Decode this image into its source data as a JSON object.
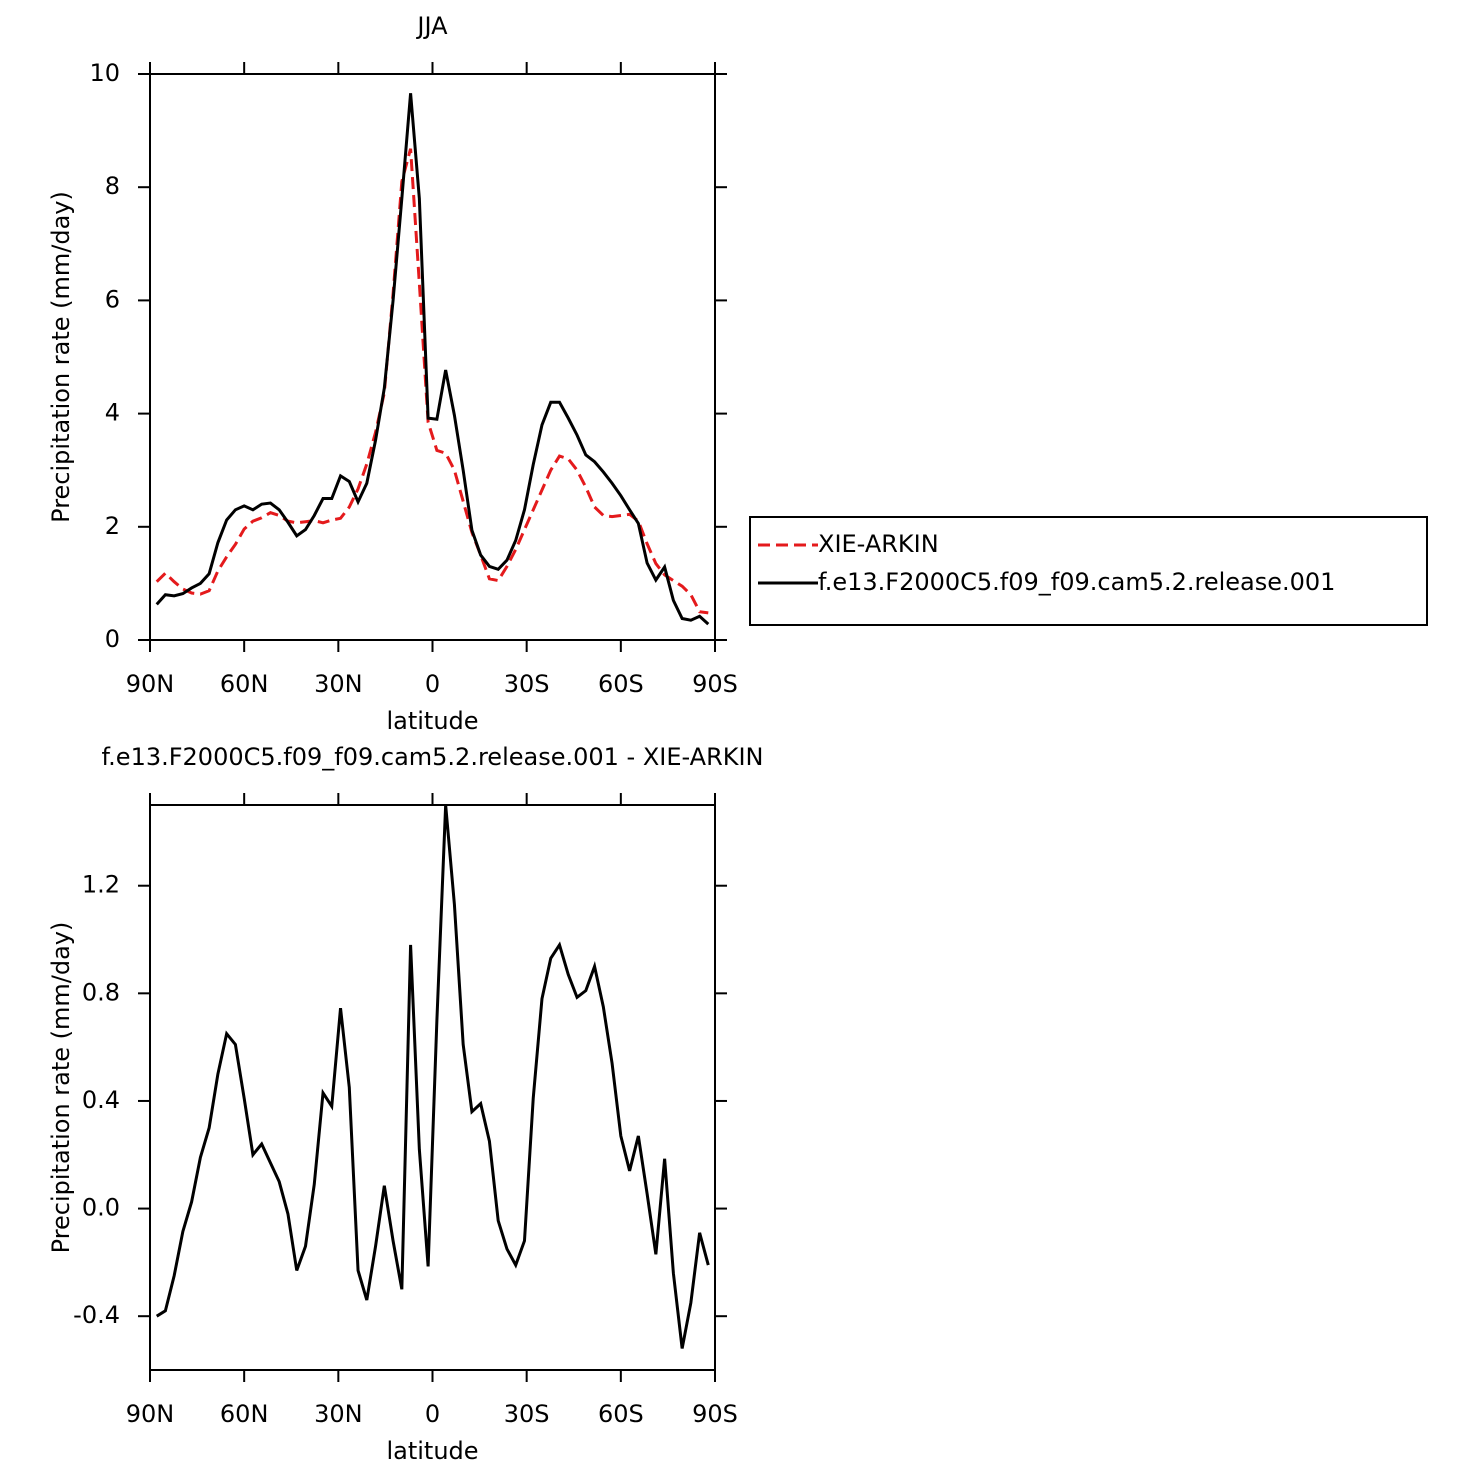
{
  "chart_data": [
    {
      "type": "line",
      "title": "JJA",
      "xlabel": "latitude",
      "ylabel": "Precipitation rate (mm/day)",
      "x": [
        87.86,
        85.1,
        82.31,
        79.53,
        76.74,
        73.95,
        71.16,
        68.37,
        65.58,
        62.79,
        60,
        57.21,
        54.42,
        51.63,
        48.84,
        46.05,
        43.25,
        40.46,
        37.67,
        34.88,
        32.09,
        29.3,
        26.51,
        23.72,
        20.93,
        18.14,
        15.35,
        12.56,
        9.77,
        6.98,
        4.19,
        1.4,
        -1.4,
        -4.19,
        -6.98,
        -9.77,
        -12.56,
        -15.35,
        -18.14,
        -20.93,
        -23.72,
        -26.51,
        -29.3,
        -32.09,
        -34.88,
        -37.67,
        -40.46,
        -43.25,
        -46.05,
        -48.84,
        -51.63,
        -54.42,
        -57.21,
        -60,
        -62.79,
        -65.58,
        -68.37,
        -71.16,
        -73.95,
        -76.74,
        -79.53,
        -82.31,
        -85.1,
        -87.86
      ],
      "series": [
        {
          "name": "XIE-ARKIN",
          "color": "#e41a1c",
          "style": "dashed",
          "values": [
            1.03,
            1.18,
            1.03,
            0.9,
            0.83,
            0.81,
            0.87,
            1.22,
            1.47,
            1.69,
            1.96,
            2.1,
            2.16,
            2.25,
            2.2,
            2.1,
            2.07,
            2.09,
            2.11,
            2.07,
            2.12,
            2.15,
            2.35,
            2.67,
            3.11,
            3.67,
            4.37,
            6.12,
            8.1,
            8.68,
            6.3,
            3.85,
            3.35,
            3.3,
            3.0,
            2.45,
            1.9,
            1.5,
            1.08,
            1.05,
            1.3,
            1.6,
            1.95,
            2.3,
            2.65,
            3.0,
            3.25,
            3.2,
            3.0,
            2.7,
            2.35,
            2.2,
            2.18,
            2.2,
            2.22,
            2.1,
            1.7,
            1.35,
            1.15,
            1.05,
            0.95,
            0.8,
            0.5,
            0.48
          ]
        },
        {
          "name": "f.e13.F2000C5.f09_f09.cam5.2.release.001",
          "color": "#000000",
          "style": "solid",
          "values": [
            0.63,
            0.8,
            0.78,
            0.82,
            0.92,
            1.0,
            1.17,
            1.72,
            2.12,
            2.3,
            2.37,
            2.3,
            2.4,
            2.42,
            2.3,
            2.08,
            1.84,
            1.95,
            2.2,
            2.5,
            2.5,
            2.9,
            2.8,
            2.44,
            2.77,
            3.53,
            4.45,
            6.0,
            7.8,
            9.66,
            7.8,
            3.92,
            3.9,
            4.77,
            3.97,
            3.0,
            1.94,
            1.5,
            1.3,
            1.25,
            1.41,
            1.76,
            2.3,
            3.1,
            3.8,
            4.2,
            4.2,
            3.92,
            3.62,
            3.27,
            3.15,
            2.97,
            2.77,
            2.55,
            2.3,
            2.06,
            1.36,
            1.06,
            1.29,
            0.7,
            0.38,
            0.35,
            0.42,
            0.28
          ]
        }
      ],
      "xlim": [
        90,
        -90
      ],
      "ylim": [
        0,
        10
      ],
      "xticks": [
        {
          "value": 90,
          "label": "90N"
        },
        {
          "value": 60,
          "label": "60N"
        },
        {
          "value": 30,
          "label": "30N"
        },
        0,
        {
          "value": -30,
          "label": "30S"
        },
        {
          "value": -60,
          "label": "60S"
        },
        {
          "value": -90,
          "label": "90S"
        }
      ],
      "yticks": [
        0,
        2,
        4,
        6,
        8,
        10
      ],
      "legend": "right"
    },
    {
      "type": "line",
      "title": "f.e13.F2000C5.f09_f09.cam5.2.release.001 - XIE-ARKIN",
      "xlabel": "latitude",
      "ylabel": "Precipitation rate (mm/day)",
      "x": [
        87.86,
        85.1,
        82.31,
        79.53,
        76.74,
        73.95,
        71.16,
        68.37,
        65.58,
        62.79,
        60,
        57.21,
        54.42,
        51.63,
        48.84,
        46.05,
        43.25,
        40.46,
        37.67,
        34.88,
        32.09,
        29.3,
        26.51,
        23.72,
        20.93,
        18.14,
        15.35,
        12.56,
        9.77,
        6.98,
        4.19,
        1.4,
        -1.4,
        -4.19,
        -6.98,
        -9.77,
        -12.56,
        -15.35,
        -18.14,
        -20.93,
        -23.72,
        -26.51,
        -29.3,
        -32.09,
        -34.88,
        -37.67,
        -40.46,
        -43.25,
        -46.05,
        -48.84,
        -51.63,
        -54.42,
        -57.21,
        -60,
        -62.79,
        -65.58,
        -68.37,
        -71.16,
        -73.95,
        -76.74,
        -79.53,
        -82.31,
        -85.1,
        -87.86
      ],
      "series": [
        {
          "color": "#000000",
          "style": "solid",
          "values": [
            -0.4,
            -0.38,
            -0.25,
            -0.085,
            0.025,
            0.19,
            0.3,
            0.5,
            0.65,
            0.61,
            0.41,
            0.2,
            0.24,
            0.17,
            0.1,
            -0.02,
            -0.23,
            -0.14,
            0.09,
            0.43,
            0.38,
            0.745,
            0.45,
            -0.23,
            -0.34,
            -0.14,
            0.085,
            -0.12,
            -0.3,
            0.98,
            0.22,
            -0.215,
            0.7,
            1.5,
            1.13,
            0.61,
            0.36,
            0.39,
            0.25,
            -0.045,
            -0.15,
            -0.21,
            -0.12,
            0.41,
            0.78,
            0.93,
            0.98,
            0.87,
            0.785,
            0.81,
            0.9,
            0.75,
            0.54,
            0.27,
            0.14,
            0.27,
            0.055,
            -0.17,
            0.185,
            -0.24,
            -0.52,
            -0.35,
            -0.09,
            -0.21
          ]
        }
      ],
      "xlim": [
        90,
        -90
      ],
      "ylim": [
        -0.6,
        1.5
      ],
      "xticks": [
        {
          "value": 90,
          "label": "90N"
        },
        {
          "value": 60,
          "label": "60N"
        },
        {
          "value": 30,
          "label": "30N"
        },
        0,
        {
          "value": -30,
          "label": "30S"
        },
        {
          "value": -60,
          "label": "60S"
        },
        {
          "value": -90,
          "label": "90S"
        }
      ],
      "yticks": [
        -0.4,
        {
          "value": 0,
          "label": "0.0"
        },
        0.4,
        0.8,
        1.2
      ]
    }
  ]
}
